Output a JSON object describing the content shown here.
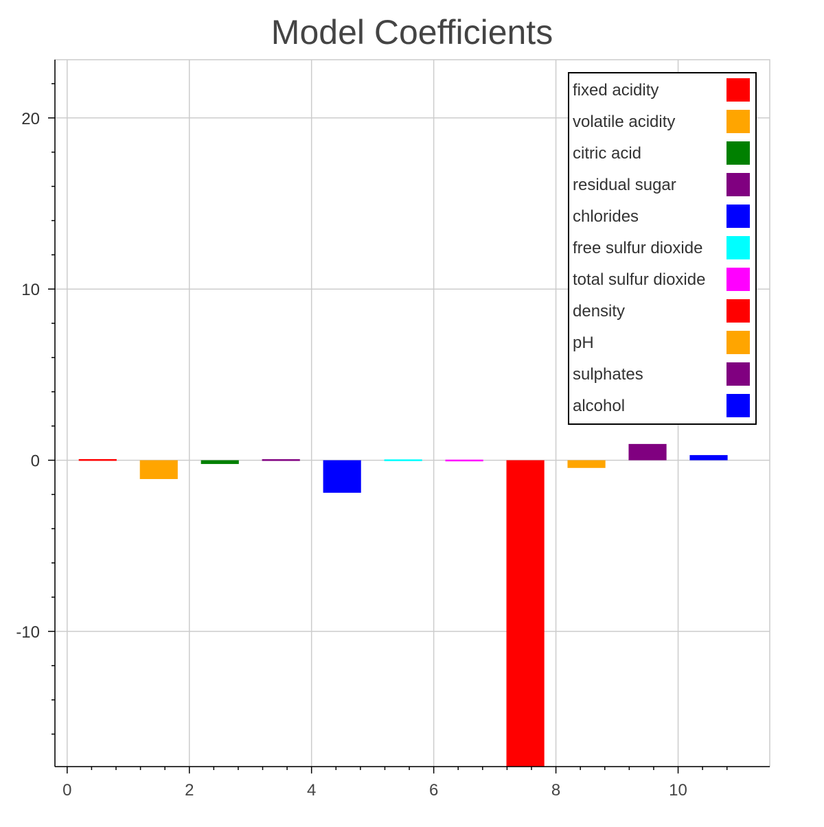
{
  "chart_data": {
    "type": "bar",
    "title": "Model Coefficients",
    "xlabel": "",
    "ylabel": "",
    "xlim": [
      -0.2,
      11.5
    ],
    "ylim": [
      -17.9,
      23.4
    ],
    "x_ticks": [
      0,
      2,
      4,
      6,
      8,
      10
    ],
    "x_tick_labels": [
      "0",
      "2",
      "4",
      "6",
      "8",
      "10"
    ],
    "y_ticks": [
      -10,
      0,
      10,
      20
    ],
    "y_tick_labels": [
      "-10",
      "0",
      "10",
      "20"
    ],
    "grid": true,
    "legend_position": "top-right",
    "bar_width": 0.62,
    "categories": [
      "fixed acidity",
      "volatile acidity",
      "citric acid",
      "residual sugar",
      "chlorides",
      "free sulfur dioxide",
      "total sulfur dioxide",
      "density",
      "pH",
      "sulphates",
      "alcohol"
    ],
    "x": [
      0.5,
      1.5,
      2.5,
      3.5,
      4.5,
      5.5,
      6.5,
      7.5,
      8.5,
      9.5,
      10.5
    ],
    "values": [
      0.03,
      -1.1,
      -0.22,
      0.02,
      -1.9,
      0.0,
      -0.03,
      -17.9,
      -0.45,
      0.95,
      0.3
    ],
    "colors": [
      "#ff0000",
      "#ffa500",
      "#008000",
      "#800080",
      "#0000ff",
      "#00ffff",
      "#ff00ff",
      "#ff0000",
      "#ffa500",
      "#800080",
      "#0000ff"
    ]
  }
}
